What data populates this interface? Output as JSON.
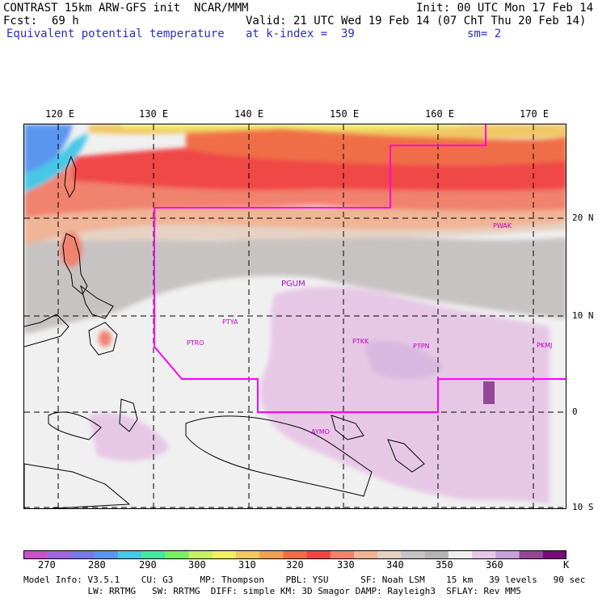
{
  "header": {
    "line1_left": "CONTRAST 15km ARW-GFS init  NCAR/MMM",
    "line1_right": "Init: 00 UTC Mon 17 Feb 14",
    "fcst_label": "Fcst:",
    "fcst_value": "69 h",
    "valid": "Valid: 21 UTC Wed 19 Feb 14 (07 ChT Thu 20 Feb 14)",
    "field": "Equivalent potential temperature",
    "level": "at k-index =  39",
    "smooth": "sm= 2"
  },
  "map": {
    "lon_labels": [
      "120 E",
      "130 E",
      "140 E",
      "150 E",
      "160 E",
      "170 E"
    ],
    "lat_labels": [
      "20 N",
      "10 N",
      "0",
      "10 S"
    ],
    "stations": [
      "PWAK",
      "PGUM",
      "PTYA",
      "PTRO",
      "PTKK",
      "PTPN",
      "PKMJ",
      "AYMO"
    ],
    "colors": {
      "land_outline": "#000000",
      "boundary": "#ff00ff",
      "gridline": "#000000"
    }
  },
  "colorbar": {
    "labels": [
      "270",
      "280",
      "290",
      "300",
      "310",
      "320",
      "330",
      "340",
      "350",
      "360"
    ],
    "unit": "K",
    "colors": [
      "#c850c8",
      "#a064dc",
      "#7878e6",
      "#5a96f0",
      "#46c8e6",
      "#46e6a0",
      "#78f064",
      "#c8f064",
      "#f0f064",
      "#f0c864",
      "#f0a050",
      "#f06e46",
      "#f04646",
      "#f0826e",
      "#f0b496",
      "#e6d2c3",
      "#c8c3c3",
      "#b4b4b4",
      "#f0f0f0",
      "#e6c8e6",
      "#c8a0dc",
      "#964696",
      "#7a0a7a"
    ]
  },
  "footer": {
    "line1": "Model Info: V3.5.1    CU: G3     MP: Thompson    PBL: YSU      SF: Noah LSM    15 km   39 levels   90 sec",
    "line2": "            LW: RRTMG   SW: RRTMG  DIFF: simple KM: 3D Smagor DAMP: Rayleigh3  SFLAY: Rev MM5"
  }
}
